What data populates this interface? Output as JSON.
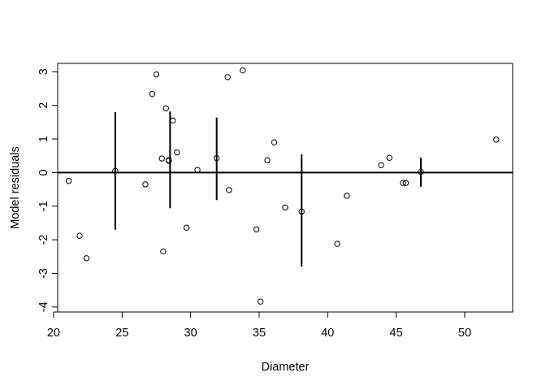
{
  "chart_data": {
    "type": "scatter",
    "title": "",
    "xlabel": "Diameter",
    "ylabel": "Model residuals",
    "xlim": [
      20.3,
      53.5
    ],
    "ylim": [
      -4.15,
      3.25
    ],
    "x_ticks": [
      20,
      25,
      30,
      35,
      40,
      45,
      50
    ],
    "y_ticks": [
      -4,
      -3,
      -2,
      -1,
      0,
      1,
      2,
      3
    ],
    "grid": false,
    "legend": "none",
    "reference_line_y": 0,
    "points": [
      {
        "x": 21.1,
        "y": -0.25
      },
      {
        "x": 21.9,
        "y": -1.88
      },
      {
        "x": 22.4,
        "y": -2.55
      },
      {
        "x": 24.5,
        "y": 0.05
      },
      {
        "x": 26.7,
        "y": -0.35
      },
      {
        "x": 27.2,
        "y": 2.34
      },
      {
        "x": 27.5,
        "y": 2.92
      },
      {
        "x": 27.9,
        "y": 0.42
      },
      {
        "x": 28.0,
        "y": -2.35
      },
      {
        "x": 28.2,
        "y": 1.91
      },
      {
        "x": 28.4,
        "y": 0.37
      },
      {
        "x": 28.4,
        "y": 0.35
      },
      {
        "x": 28.7,
        "y": 1.55
      },
      {
        "x": 29.0,
        "y": 0.6
      },
      {
        "x": 29.7,
        "y": -1.64
      },
      {
        "x": 30.5,
        "y": 0.08
      },
      {
        "x": 31.9,
        "y": 0.43
      },
      {
        "x": 32.7,
        "y": 2.84
      },
      {
        "x": 32.8,
        "y": -0.52
      },
      {
        "x": 33.8,
        "y": 3.04
      },
      {
        "x": 34.8,
        "y": -1.69
      },
      {
        "x": 35.1,
        "y": -3.84
      },
      {
        "x": 35.6,
        "y": 0.37
      },
      {
        "x": 36.1,
        "y": 0.9
      },
      {
        "x": 36.9,
        "y": -1.04
      },
      {
        "x": 38.1,
        "y": -1.16
      },
      {
        "x": 40.7,
        "y": -2.12
      },
      {
        "x": 41.4,
        "y": -0.69
      },
      {
        "x": 43.9,
        "y": 0.22
      },
      {
        "x": 44.5,
        "y": 0.44
      },
      {
        "x": 45.5,
        "y": -0.31
      },
      {
        "x": 45.7,
        "y": -0.31
      },
      {
        "x": 46.8,
        "y": 0.02
      },
      {
        "x": 52.3,
        "y": 0.98
      }
    ],
    "error_bars": [
      {
        "x": 24.5,
        "low": -1.7,
        "high": 1.8
      },
      {
        "x": 28.5,
        "low": -1.06,
        "high": 1.82
      },
      {
        "x": 31.9,
        "low": -0.82,
        "high": 1.64
      },
      {
        "x": 38.1,
        "low": -2.8,
        "high": 0.54
      },
      {
        "x": 46.8,
        "low": -0.42,
        "high": 0.44
      }
    ]
  }
}
